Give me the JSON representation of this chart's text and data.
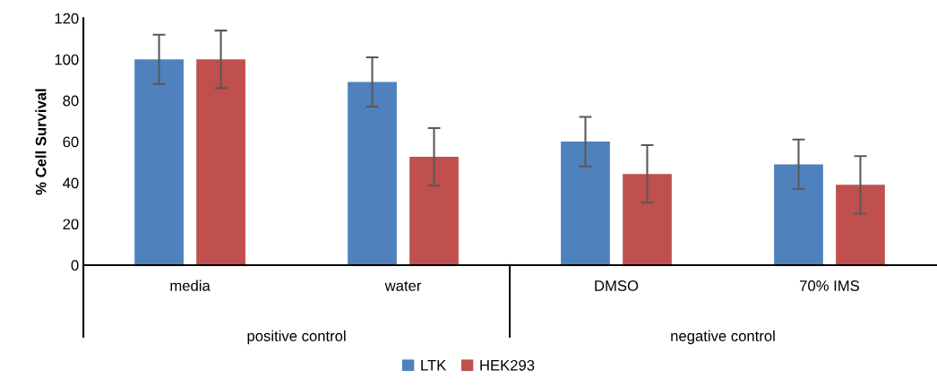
{
  "chart_data": {
    "type": "bar",
    "ylabel": "% Cell Survival",
    "categories": [
      "media",
      "water",
      "DMSO",
      "70% IMS"
    ],
    "series": [
      {
        "name": "LTK",
        "color": "#4f81bd",
        "values": [
          100,
          89,
          60,
          49
        ],
        "errors": [
          12,
          12,
          12,
          12
        ]
      },
      {
        "name": "HEK293",
        "color": "#c0504d",
        "values": [
          100,
          52.6,
          44.3,
          39
        ],
        "errors": [
          14,
          14,
          14,
          14
        ]
      }
    ],
    "annotations": [
      "positive control",
      "negative control"
    ],
    "ylim": [
      0,
      120
    ],
    "yticks": [
      0,
      20,
      40,
      60,
      80,
      100,
      120
    ],
    "grid": false,
    "legend": "bottom"
  }
}
